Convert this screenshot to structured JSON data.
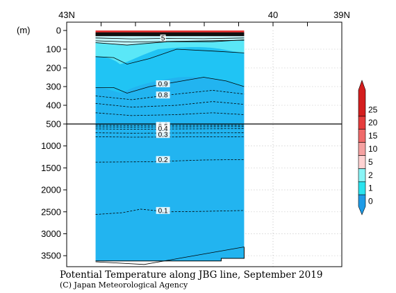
{
  "chart_data": {
    "type": "contour-section",
    "title": "Potential Temperature along JBG line, September 2019",
    "credit": "(C) Japan Meteorological Agency",
    "ylabel": "(m)",
    "x_axis": {
      "ticks": [
        {
          "label": "43N",
          "lat": 43.0
        },
        {
          "label": "40",
          "lat": 40.0
        },
        {
          "label": "39N",
          "lat": 39.0
        }
      ],
      "lim": [
        43.0,
        39.0
      ]
    },
    "y_axis_upper": {
      "range": [
        0,
        500
      ],
      "ticks": [
        {
          "label": "0",
          "depth": 0
        },
        {
          "label": "100",
          "depth": 100
        },
        {
          "label": "200",
          "depth": 200
        },
        {
          "label": "300",
          "depth": 300
        },
        {
          "label": "400",
          "depth": 400
        },
        {
          "label": "500",
          "depth": 500
        }
      ]
    },
    "y_axis_lower": {
      "range": [
        500,
        3750
      ],
      "ticks": [
        {
          "label": "1000",
          "depth": 1000
        },
        {
          "label": "1500",
          "depth": 1500
        },
        {
          "label": "2000",
          "depth": 2000
        },
        {
          "label": "2500",
          "depth": 2500
        },
        {
          "label": "3000",
          "depth": 3000
        },
        {
          "label": "3500",
          "depth": 3500
        }
      ]
    },
    "data_extent_lat": [
      42.58,
      40.42
    ],
    "contour_labels": [
      {
        "text": "5",
        "lat": 41.6,
        "depth": 40
      },
      {
        "text": "0.9",
        "lat": 41.6,
        "depth": 285
      },
      {
        "text": "0.8",
        "lat": 41.6,
        "depth": 345
      },
      {
        "text": "0.6",
        "lat": 41.6,
        "depth": 530
      },
      {
        "text": "0.5",
        "lat": 41.6,
        "depth": 560
      },
      {
        "text": "0.4",
        "lat": 41.6,
        "depth": 605
      },
      {
        "text": "0.3",
        "lat": 41.6,
        "depth": 740
      },
      {
        "text": "0.2",
        "lat": 41.6,
        "depth": 1310
      },
      {
        "text": "0.1",
        "lat": 41.6,
        "depth": 2470
      }
    ],
    "colorbar": {
      "levels": [
        "0",
        "1",
        "2",
        "5",
        "10",
        "15",
        "20",
        "25"
      ],
      "colors": [
        "#1e9be6",
        "#29e3ee",
        "#8af4f6",
        "#ffd2d2",
        "#f5a1a1",
        "#ef6a6a",
        "#e63c3c",
        "#d41e1e"
      ]
    },
    "fill_colors": {
      "deep": "#22b4f0",
      "mid": "#20c4f4",
      "intermediate": "#5ae7f7",
      "surface": "#bff6fb",
      "warm": "#e83232"
    }
  }
}
